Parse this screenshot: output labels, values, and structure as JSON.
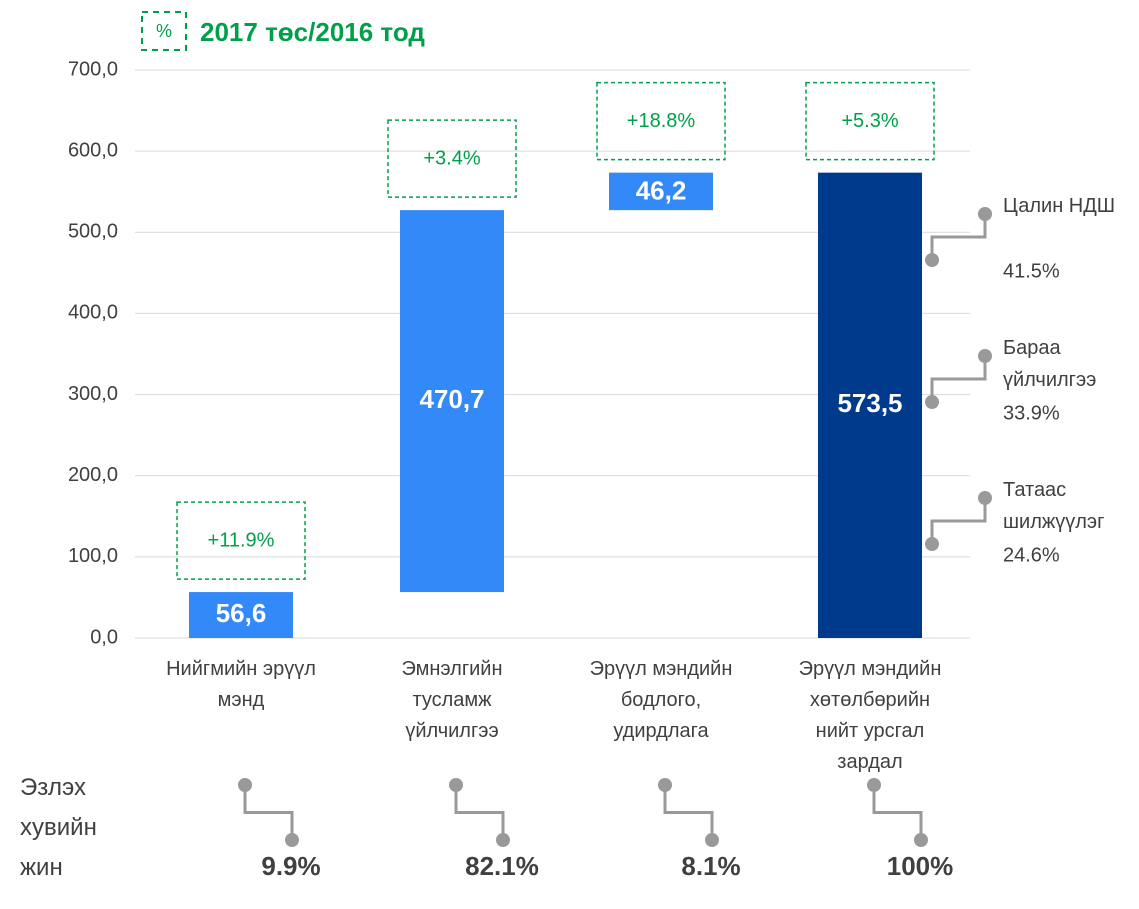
{
  "chart_data": {
    "type": "waterfall",
    "title": "2017 төс/2016 тод",
    "legend_icon": "%",
    "categories": [
      "Нийгмийн эрүүл мэнд",
      "Эмнэлгийн тусламж үйлчилгээ",
      "Эрүүл мэндийн бодлого, удирдлага",
      "Эрүүл мэндийн хөтөлбөрийн нийт урсгал зардал"
    ],
    "values": [
      56.6,
      470.7,
      46.2,
      573.5
    ],
    "value_labels": [
      "56,6",
      "470,7",
      "46,2",
      "573,5"
    ],
    "measure": [
      "relative",
      "relative",
      "relative",
      "total"
    ],
    "colors": [
      "#3389f7",
      "#3389f7",
      "#3389f7",
      "#003a8c"
    ],
    "ylim": [
      0,
      700
    ],
    "yticks": [
      {
        "value": 0,
        "label": "0,0"
      },
      {
        "value": 100,
        "label": "100,0"
      },
      {
        "value": 200,
        "label": "200,0"
      },
      {
        "value": 300,
        "label": "300,0"
      },
      {
        "value": 400,
        "label": "400,0"
      },
      {
        "value": 500,
        "label": "500,0"
      },
      {
        "value": 600,
        "label": "600,0"
      },
      {
        "value": 700,
        "label": "700,0"
      }
    ],
    "grid": true,
    "growth": {
      "values": [
        11.9,
        3.4,
        18.8,
        5.3
      ],
      "value_labels": [
        "+11.9%",
        "+3.4%",
        "+18.8%",
        "+5.3%"
      ]
    },
    "share_title": "Эзлэх хувийн жин",
    "shares": {
      "values": [
        9.9,
        82.1,
        8.1,
        100
      ],
      "value_labels": [
        "9.9%",
        "82.1%",
        "8.1%",
        "100%"
      ]
    },
    "breakdown": {
      "names": [
        "Цалин НДШ",
        "Бараа үйлчилгээ",
        "Татаас шилжүүлэг"
      ],
      "values": [
        41.5,
        33.9,
        24.6
      ],
      "value_labels": [
        "41.5%",
        "33.9%",
        "24.6%"
      ]
    }
  }
}
